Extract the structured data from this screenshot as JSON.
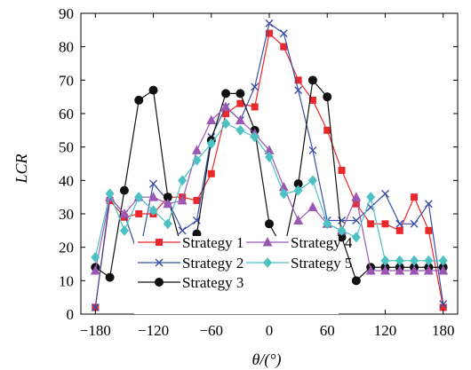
{
  "chart_data": {
    "type": "line",
    "xlabel": "θ/(°)",
    "ylabel": "LCR",
    "xlim": [
      -195,
      195
    ],
    "ylim": [
      0,
      90
    ],
    "xticks": [
      -180,
      -120,
      -60,
      0,
      60,
      120,
      180
    ],
    "yticks": [
      0,
      10,
      20,
      30,
      40,
      50,
      60,
      70,
      80,
      90
    ],
    "grid": false,
    "legend_position": "bottom-center",
    "x": [
      -180,
      -165,
      -150,
      -135,
      -120,
      -105,
      -90,
      -75,
      -60,
      -45,
      -30,
      -15,
      0,
      15,
      30,
      45,
      60,
      75,
      90,
      105,
      120,
      135,
      150,
      165,
      180
    ],
    "series": [
      {
        "name": "Strategy 1",
        "color": "#e8282a",
        "marker": "square",
        "values": [
          2,
          34,
          29,
          30,
          30,
          35,
          35,
          34,
          42,
          60,
          63,
          62,
          84,
          80,
          70,
          64,
          55,
          43,
          33,
          27,
          27,
          25,
          35,
          25,
          2
        ]
      },
      {
        "name": "Strategy 2",
        "color": "#3a4fa8",
        "marker": "x",
        "values": [
          2,
          35,
          30,
          17,
          39,
          34,
          25,
          28,
          53,
          62,
          58,
          68,
          87,
          84,
          67,
          49,
          28,
          28,
          28,
          32,
          36,
          27,
          27,
          33,
          3
        ]
      },
      {
        "name": "Strategy 3",
        "color": "#111111",
        "marker": "circle",
        "values": [
          14,
          11,
          37,
          64,
          67,
          35,
          19,
          24,
          52,
          66,
          66,
          55,
          27,
          19,
          39,
          70,
          65,
          23,
          10,
          14,
          14,
          14,
          14,
          14,
          14
        ]
      },
      {
        "name": "Strategy 4",
        "color": "#9a58b4",
        "marker": "triangle",
        "values": [
          13,
          35,
          30,
          35,
          35,
          33,
          34,
          49,
          58,
          62,
          58,
          54,
          49,
          38,
          28,
          32,
          27,
          25,
          35,
          13,
          13,
          13,
          13,
          13,
          13
        ]
      },
      {
        "name": "Strategy 5",
        "color": "#4cc2c4",
        "marker": "diamond",
        "values": [
          17,
          36,
          25,
          35,
          31,
          27,
          40,
          46,
          51,
          57,
          55,
          53,
          47,
          36,
          37,
          40,
          27,
          25,
          23,
          35,
          16,
          16,
          16,
          16,
          16
        ]
      }
    ],
    "legend_order": [
      "Strategy 1",
      "Strategy 2",
      "Strategy 3",
      "Strategy 4",
      "Strategy 5"
    ]
  }
}
